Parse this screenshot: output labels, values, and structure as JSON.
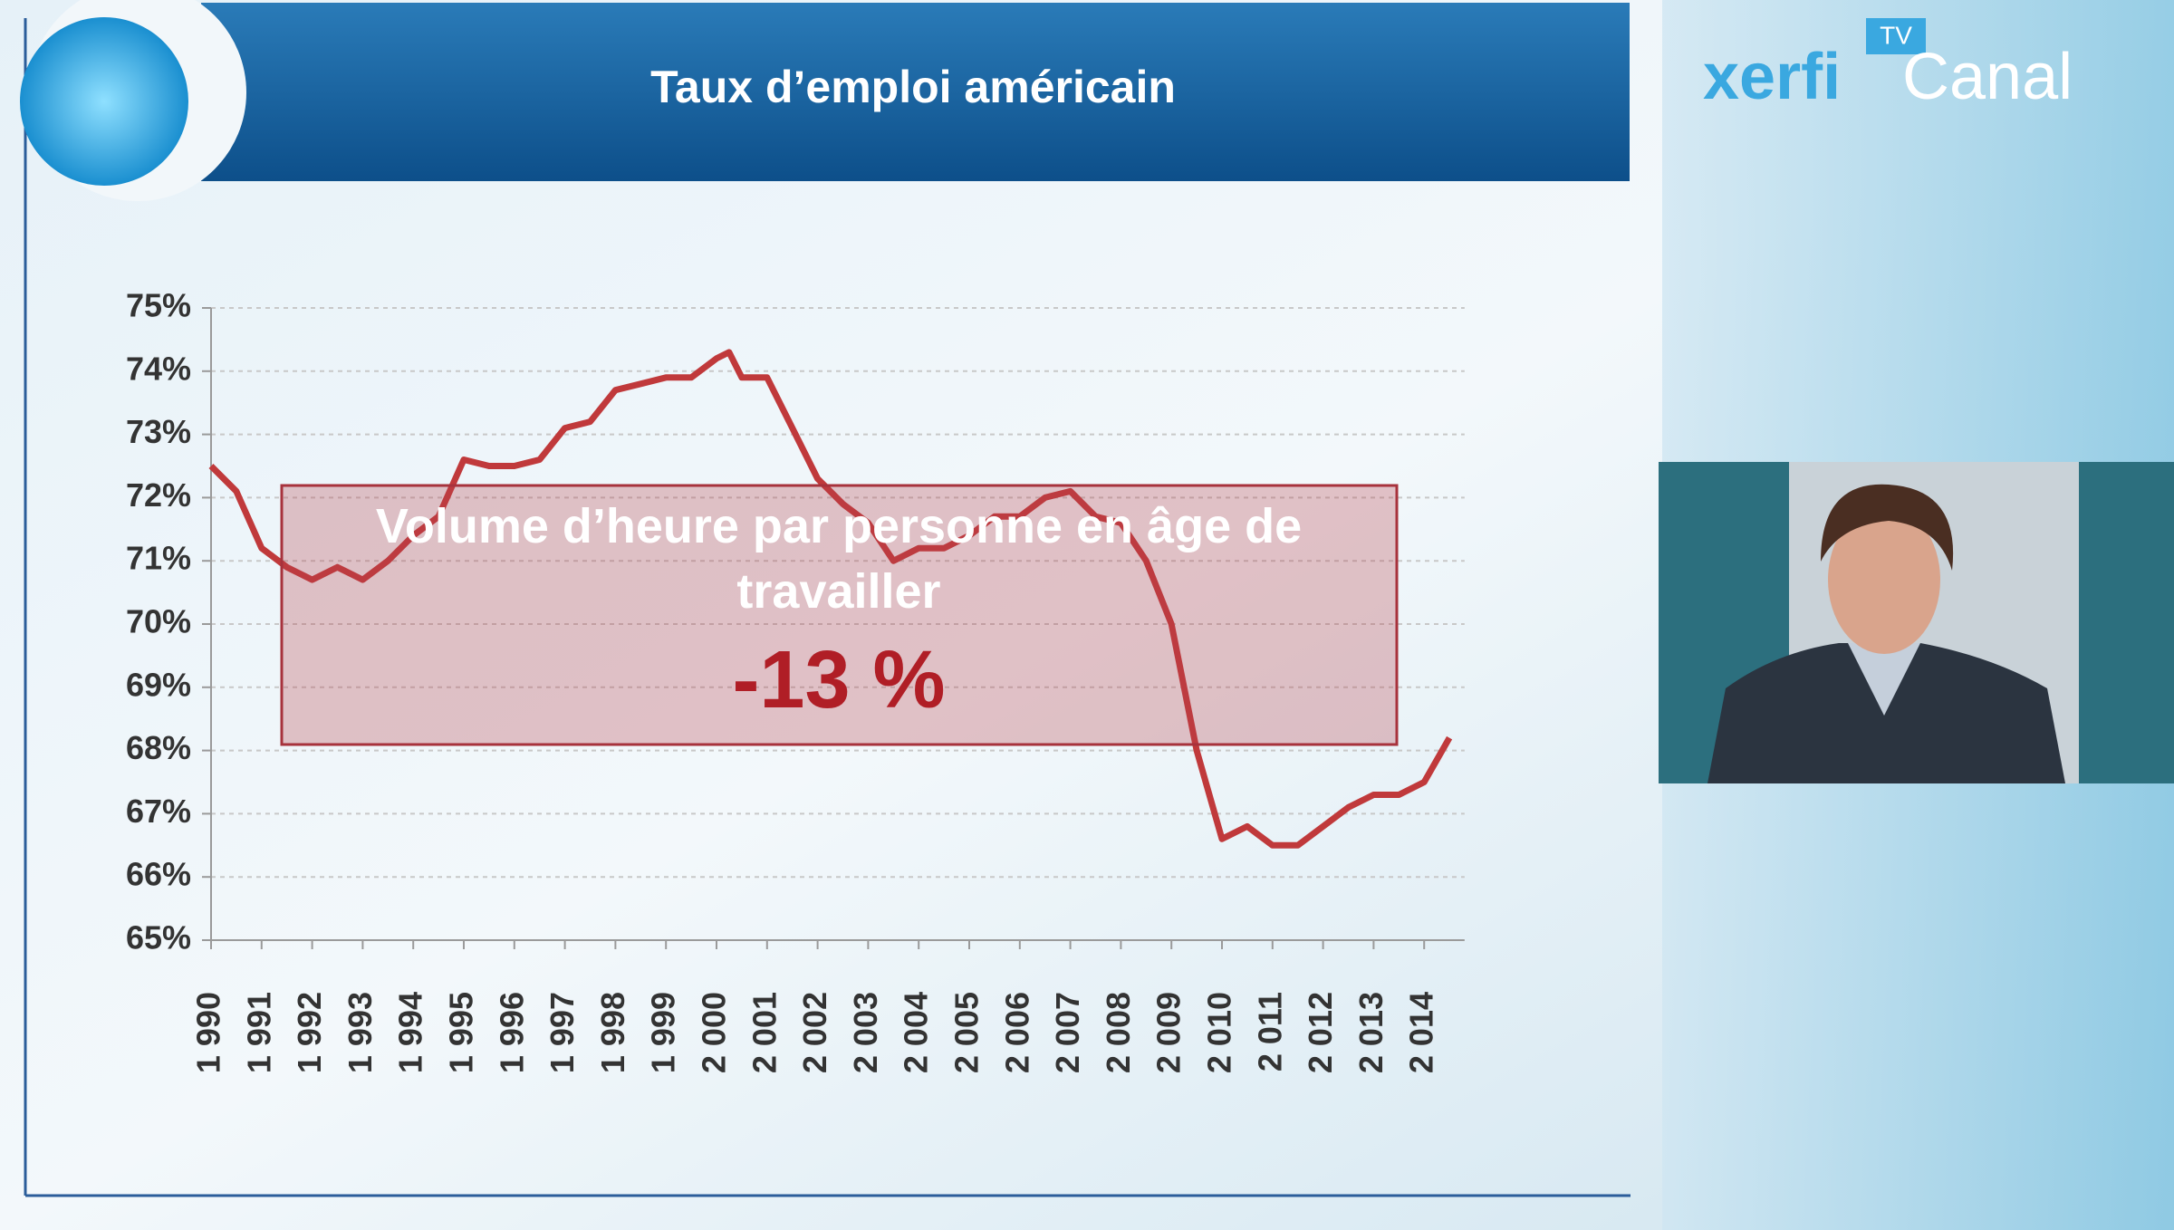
{
  "chart_data": {
    "type": "line",
    "title": "Taux d’emploi américain",
    "logo": {
      "brand": "xerfi",
      "channel": "Canal",
      "badge": "TV"
    },
    "annotation": {
      "text": "Volume d’heure par personne en âge de travailler",
      "highlight": "-13 %"
    },
    "x": [
      1990,
      1990.5,
      1991,
      1991.5,
      1992,
      1992.5,
      1993,
      1993.5,
      1994,
      1994.5,
      1995,
      1995.5,
      1996,
      1996.5,
      1997,
      1997.5,
      1998,
      1998.5,
      1999,
      1999.5,
      2000,
      2000.25,
      2000.5,
      2001,
      2001.5,
      2002,
      2002.5,
      2003,
      2003.5,
      2004,
      2004.5,
      2005,
      2005.5,
      2006,
      2006.5,
      2007,
      2007.5,
      2008,
      2008.5,
      2009,
      2009.5,
      2010,
      2010.5,
      2011,
      2011.5,
      2012,
      2012.5,
      2013,
      2013.5,
      2014,
      2014.5
    ],
    "series": [
      {
        "color": "#c0393b",
        "values": [
          72.5,
          72.1,
          71.2,
          70.9,
          70.7,
          70.9,
          70.7,
          71.0,
          71.4,
          71.7,
          72.6,
          72.5,
          72.5,
          72.6,
          73.1,
          73.2,
          73.7,
          73.8,
          73.9,
          73.9,
          74.2,
          74.3,
          73.9,
          73.9,
          73.1,
          72.3,
          71.9,
          71.6,
          71.0,
          71.2,
          71.2,
          71.4,
          71.7,
          71.7,
          72.0,
          72.1,
          71.7,
          71.6,
          71.0,
          70.0,
          68.0,
          66.6,
          66.8,
          66.5,
          66.5,
          66.8,
          67.1,
          67.3,
          67.3,
          67.5,
          68.2
        ]
      }
    ],
    "xlim": [
      1990,
      2014.8
    ],
    "xticks": [
      {
        "value": 1990,
        "label": "1 990"
      },
      {
        "value": 1991,
        "label": "1 991"
      },
      {
        "value": 1992,
        "label": "1 992"
      },
      {
        "value": 1993,
        "label": "1 993"
      },
      {
        "value": 1994,
        "label": "1 994"
      },
      {
        "value": 1995,
        "label": "1 995"
      },
      {
        "value": 1996,
        "label": "1 996"
      },
      {
        "value": 1997,
        "label": "1 997"
      },
      {
        "value": 1998,
        "label": "1 998"
      },
      {
        "value": 1999,
        "label": "1 999"
      },
      {
        "value": 2000,
        "label": "2 000"
      },
      {
        "value": 2001,
        "label": "2 001"
      },
      {
        "value": 2002,
        "label": "2 002"
      },
      {
        "value": 2003,
        "label": "2 003"
      },
      {
        "value": 2004,
        "label": "2 004"
      },
      {
        "value": 2005,
        "label": "2 005"
      },
      {
        "value": 2006,
        "label": "2 006"
      },
      {
        "value": 2007,
        "label": "2 007"
      },
      {
        "value": 2008,
        "label": "2 008"
      },
      {
        "value": 2009,
        "label": "2 009"
      },
      {
        "value": 2010,
        "label": "2 010"
      },
      {
        "value": 2011,
        "label": "2 011"
      },
      {
        "value": 2012,
        "label": "2 012"
      },
      {
        "value": 2013,
        "label": "2 013"
      },
      {
        "value": 2014,
        "label": "2 014"
      }
    ],
    "ylim": [
      65,
      75
    ],
    "yticks": [
      {
        "value": 65,
        "label": "65%"
      },
      {
        "value": 66,
        "label": "66%"
      },
      {
        "value": 67,
        "label": "67%"
      },
      {
        "value": 68,
        "label": "68%"
      },
      {
        "value": 69,
        "label": "69%"
      },
      {
        "value": 70,
        "label": "70%"
      },
      {
        "value": 71,
        "label": "71%"
      },
      {
        "value": 72,
        "label": "72%"
      },
      {
        "value": 73,
        "label": "73%"
      },
      {
        "value": 74,
        "label": "74%"
      },
      {
        "value": 75,
        "label": "75%"
      }
    ],
    "grid": true
  }
}
